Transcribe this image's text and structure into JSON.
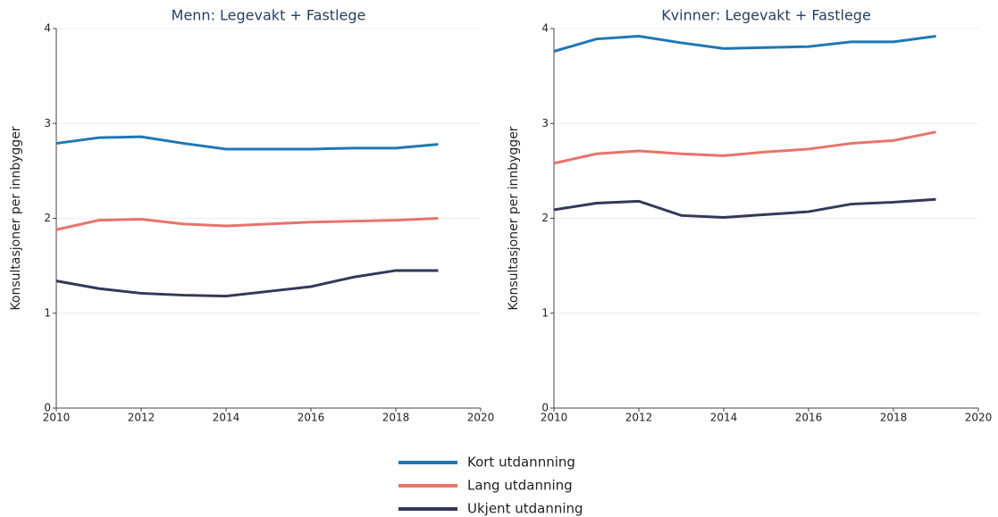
{
  "chart_data": [
    {
      "type": "line",
      "title": "Menn: Legevakt + Fastlege",
      "y_label": "Konsultasjoner per innbygger",
      "x": [
        2010,
        2011,
        2012,
        2013,
        2014,
        2015,
        2016,
        2017,
        2018,
        2019
      ],
      "series": [
        {
          "values": [
            2.79,
            2.85,
            2.86,
            2.79,
            2.73,
            2.73,
            2.73,
            2.74,
            2.74,
            2.78
          ]
        },
        {
          "values": [
            1.88,
            1.98,
            1.99,
            1.94,
            1.92,
            1.94,
            1.96,
            1.97,
            1.98,
            2.0
          ]
        },
        {
          "values": [
            1.34,
            1.26,
            1.21,
            1.19,
            1.18,
            1.23,
            1.28,
            1.38,
            1.45,
            1.45
          ]
        }
      ],
      "xlim": [
        2010,
        2020
      ],
      "xticks": [
        2010,
        2012,
        2014,
        2016,
        2018,
        2020
      ],
      "ylim": [
        0,
        4
      ],
      "yticks": [
        0,
        1,
        2,
        3,
        4
      ],
      "grid": true
    },
    {
      "type": "line",
      "title": "Kvinner: Legevakt + Fastlege",
      "y_label": "Konsultasjoner per innbygger",
      "x": [
        2010,
        2011,
        2012,
        2013,
        2014,
        2015,
        2016,
        2017,
        2018,
        2019
      ],
      "series": [
        {
          "values": [
            3.76,
            3.89,
            3.92,
            3.85,
            3.79,
            3.8,
            3.81,
            3.86,
            3.86,
            3.92
          ]
        },
        {
          "values": [
            2.58,
            2.68,
            2.71,
            2.68,
            2.66,
            2.7,
            2.73,
            2.79,
            2.82,
            2.91
          ]
        },
        {
          "values": [
            2.09,
            2.16,
            2.18,
            2.03,
            2.01,
            2.04,
            2.07,
            2.15,
            2.17,
            2.2
          ]
        }
      ],
      "xlim": [
        2010,
        2020
      ],
      "xticks": [
        2010,
        2012,
        2014,
        2016,
        2018,
        2020
      ],
      "ylim": [
        0,
        4
      ],
      "yticks": [
        0,
        1,
        2,
        3,
        4
      ],
      "grid": true
    }
  ],
  "legend": {
    "series": [
      {
        "name": "Kort utdannning",
        "color": "#1f77b4"
      },
      {
        "name": "Lang utdanning",
        "color": "#e8736c"
      },
      {
        "name": "Ukjent utdanning",
        "color": "#35375a"
      }
    ]
  }
}
